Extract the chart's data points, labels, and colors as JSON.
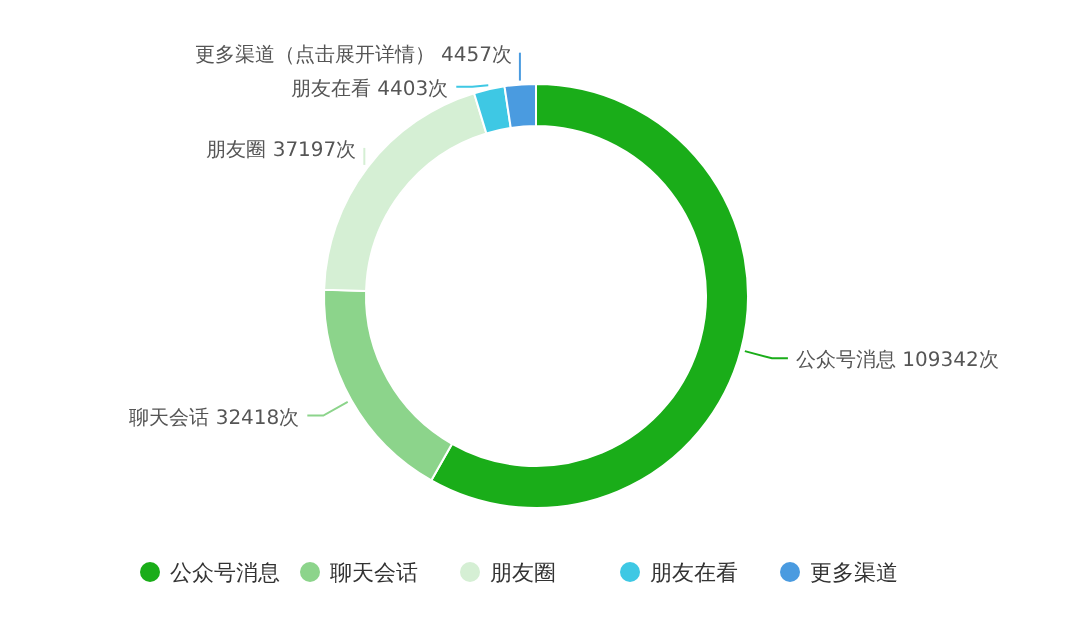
{
  "chart_data": {
    "type": "donut",
    "categories": [
      "公众号消息",
      "聊天会话",
      "朋友圈",
      "朋友在看",
      "更多渠道"
    ],
    "values": [
      109342,
      32418,
      37197,
      4403,
      4457
    ],
    "colors": [
      "#1aad19",
      "#8cd48b",
      "#d5efd4",
      "#3ec8e4",
      "#4a9be0"
    ],
    "value_labels": [
      "公众号消息 109342次",
      "聊天会话 32418次",
      "朋友圈 37197次",
      "朋友在看 4403次",
      "更多渠道（点击展开详情） 4457次"
    ],
    "legend": "bottom"
  }
}
